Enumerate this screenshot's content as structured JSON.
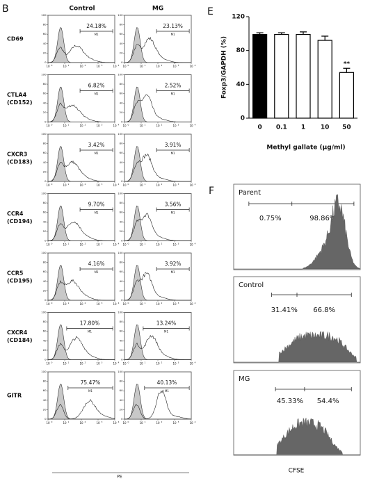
{
  "panel_b": {
    "letter": "B",
    "columns": [
      "Control",
      "MG"
    ],
    "rows": [
      {
        "label": [
          "CD69"
        ],
        "percents": [
          "24.18%",
          "23.13%"
        ]
      },
      {
        "label": [
          "CTLA4",
          "(CD152)"
        ],
        "percents": [
          "6.82%",
          "2.52%"
        ]
      },
      {
        "label": [
          "CXCR3",
          "(CD183)"
        ],
        "percents": [
          "3.42%",
          "3.91%"
        ]
      },
      {
        "label": [
          "CCR4",
          "(CD194)"
        ],
        "percents": [
          "9.70%",
          "3.56%"
        ]
      },
      {
        "label": [
          "CCR5",
          "(CD195)"
        ],
        "percents": [
          "4.16%",
          "3.92%"
        ]
      },
      {
        "label": [
          "CXCR4",
          "(CD184)"
        ],
        "percents": [
          "17.80%",
          "13.24%"
        ]
      },
      {
        "label": [
          "GITR"
        ],
        "percents": [
          "75.47%",
          "40.13%"
        ]
      }
    ],
    "gate_label": "M1",
    "yticks": [
      0,
      20,
      40,
      60,
      80,
      100
    ],
    "x_tick_base": "10",
    "x_tick_exponents": [
      "0",
      "1",
      "2",
      "3",
      "4"
    ],
    "x_axis_label": "PE"
  },
  "chart_data": {
    "type": "bar",
    "panel_letter": "E",
    "categories": [
      "0",
      "0.1",
      "1",
      "10",
      "50"
    ],
    "values": [
      99,
      99,
      99,
      92,
      54
    ],
    "errors": [
      2,
      2,
      3,
      5,
      5
    ],
    "colors": [
      "#000000",
      "#ffffff",
      "#ffffff",
      "#ffffff",
      "#ffffff"
    ],
    "significance": [
      null,
      null,
      null,
      null,
      "**"
    ],
    "ylim": [
      0,
      120
    ],
    "yticks": [
      0,
      40,
      80,
      120
    ],
    "y_label": "Foxp3/GAPDH (%)",
    "x_label": "Methyl gallate (μg/ml)"
  },
  "panel_f": {
    "letter": "F",
    "panels": [
      {
        "name": "Parent",
        "percents": [
          "0.75%",
          "98.86%"
        ]
      },
      {
        "name": "Control",
        "percents": [
          "31.41%",
          "66.8%"
        ]
      },
      {
        "name": "MG",
        "percents": [
          "45.33%",
          "54.4%"
        ]
      }
    ],
    "x_axis_label": "CFSE"
  }
}
